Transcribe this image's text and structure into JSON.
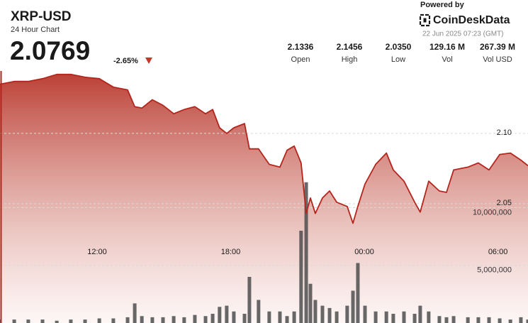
{
  "header": {
    "title": "XRP-USD",
    "subtitle": "24 Hour Chart",
    "price": "2.0769",
    "change": "-2.65%",
    "powered_by": "Powered by",
    "brand": "CoinDeskData",
    "timestamp": "22 Jun 2025 07:23 (GMT)"
  },
  "stats": [
    {
      "value": "2.1336",
      "label": "Open"
    },
    {
      "value": "2.1456",
      "label": "High"
    },
    {
      "value": "2.0350",
      "label": "Low"
    },
    {
      "value": "129.16 M",
      "label": "Vol"
    },
    {
      "value": "267.39 M",
      "label": "Vol USD"
    }
  ],
  "chart_data": {
    "type": "line",
    "x": [
      7.64,
      8.28,
      8.91,
      9.55,
      10.19,
      10.82,
      11.46,
      12.1,
      12.73,
      13.37,
      13.69,
      14.01,
      14.48,
      14.96,
      15.44,
      15.91,
      16.39,
      16.87,
      17.19,
      17.5,
      17.82,
      18.14,
      18.62,
      18.84,
      19.25,
      19.73,
      20.21,
      20.53,
      20.85,
      21.16,
      21.39,
      21.58,
      21.8,
      22.12,
      22.44,
      22.76,
      23.23,
      23.49,
      23.71,
      24.03,
      24.51,
      24.99,
      25.3,
      25.78,
      26.26,
      26.51,
      26.89,
      27.37,
      27.69,
      28.01,
      28.65,
      29.12,
      29.6,
      30.08,
      30.56,
      31.03,
      31.35
    ],
    "xlim": [
      7.64,
      31.35
    ],
    "xticks": [
      {
        "value": 12,
        "label": "12:00"
      },
      {
        "value": 18,
        "label": "18:00"
      },
      {
        "value": 24,
        "label": "00:00"
      },
      {
        "value": 30,
        "label": "06:00"
      }
    ],
    "ylim": [
      1.965,
      2.195
    ],
    "yticks": [
      2.05,
      {
        "value": 2.1,
        "label": "2.10"
      }
    ],
    "y2lim": [
      0,
      28000000
    ],
    "y2ticks": [
      {
        "value": 5000000,
        "label": "5,000,000"
      },
      {
        "value": 10000000,
        "label": "10,000,000"
      }
    ],
    "grid": true,
    "series": [
      {
        "type": "line",
        "color": "#b3261e",
        "values": [
          2.135,
          2.137,
          2.137,
          2.139,
          2.142,
          2.142,
          2.14,
          2.139,
          2.133,
          2.131,
          2.119,
          2.118,
          2.124,
          2.12,
          2.114,
          2.117,
          2.119,
          2.114,
          2.117,
          2.104,
          2.1,
          2.104,
          2.107,
          2.089,
          2.089,
          2.078,
          2.076,
          2.088,
          2.091,
          2.079,
          2.043,
          2.054,
          2.043,
          2.054,
          2.059,
          2.051,
          2.048,
          2.036,
          2.048,
          2.064,
          2.078,
          2.086,
          2.074,
          2.066,
          2.051,
          2.044,
          2.066,
          2.059,
          2.058,
          2.074,
          2.076,
          2.079,
          2.074,
          2.085,
          2.086,
          2.081,
          2.077
        ]
      },
      {
        "type": "bar",
        "axis": "y2",
        "color": "#4d4d4d",
        "values": [
          300000,
          300000,
          300000,
          300000,
          200000,
          300000,
          300000,
          400000,
          400000,
          500000,
          1700000,
          600000,
          500000,
          500000,
          600000,
          500000,
          700000,
          600000,
          800000,
          1400000,
          1500000,
          1000000,
          800000,
          4000000,
          2000000,
          1000000,
          1000000,
          600000,
          1000000,
          8000000,
          12200000,
          3400000,
          2000000,
          1500000,
          1300000,
          1000000,
          1500000,
          2800000,
          5200000,
          1500000,
          1000000,
          1000000,
          800000,
          1000000,
          800000,
          1500000,
          1000000,
          600000,
          500000,
          600000,
          500000,
          500000,
          500000,
          400000,
          300000,
          500000,
          300000
        ]
      }
    ]
  }
}
